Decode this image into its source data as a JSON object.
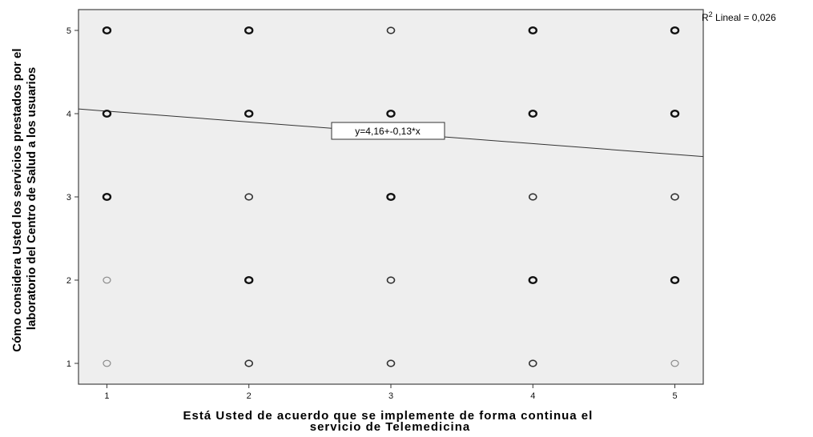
{
  "chart_data": {
    "type": "scatter",
    "xlabel_lines": [
      "Está Usted de acuerdo que se implemente de forma continua el",
      "servicio de Telemedicina"
    ],
    "ylabel_lines": [
      "Cómo considera Usted los servicios prestados por el",
      "laboratorio del Centro de Salud a los usuarios"
    ],
    "x_ticks": [
      1,
      2,
      3,
      4,
      5
    ],
    "y_ticks": [
      1,
      2,
      3,
      4,
      5
    ],
    "xlim": [
      0.8,
      5.2
    ],
    "ylim": [
      0.75,
      5.25
    ],
    "grid": false,
    "points": [
      {
        "x": 1,
        "y": 5,
        "emphasis": "bold"
      },
      {
        "x": 2,
        "y": 5,
        "emphasis": "bold"
      },
      {
        "x": 3,
        "y": 5,
        "emphasis": "normal"
      },
      {
        "x": 4,
        "y": 5,
        "emphasis": "bold"
      },
      {
        "x": 5,
        "y": 5,
        "emphasis": "bold"
      },
      {
        "x": 1,
        "y": 4,
        "emphasis": "bold"
      },
      {
        "x": 2,
        "y": 4,
        "emphasis": "bold"
      },
      {
        "x": 3,
        "y": 4,
        "emphasis": "bold"
      },
      {
        "x": 4,
        "y": 4,
        "emphasis": "bold"
      },
      {
        "x": 5,
        "y": 4,
        "emphasis": "bold"
      },
      {
        "x": 1,
        "y": 3,
        "emphasis": "bold"
      },
      {
        "x": 2,
        "y": 3,
        "emphasis": "normal"
      },
      {
        "x": 3,
        "y": 3,
        "emphasis": "bold"
      },
      {
        "x": 4,
        "y": 3,
        "emphasis": "normal"
      },
      {
        "x": 5,
        "y": 3,
        "emphasis": "normal"
      },
      {
        "x": 1,
        "y": 2,
        "emphasis": "light"
      },
      {
        "x": 2,
        "y": 2,
        "emphasis": "bold"
      },
      {
        "x": 3,
        "y": 2,
        "emphasis": "normal"
      },
      {
        "x": 4,
        "y": 2,
        "emphasis": "bold"
      },
      {
        "x": 5,
        "y": 2,
        "emphasis": "bold"
      },
      {
        "x": 1,
        "y": 1,
        "emphasis": "light"
      },
      {
        "x": 2,
        "y": 1,
        "emphasis": "normal"
      },
      {
        "x": 3,
        "y": 1,
        "emphasis": "normal"
      },
      {
        "x": 4,
        "y": 1,
        "emphasis": "normal"
      },
      {
        "x": 5,
        "y": 1,
        "emphasis": "light"
      }
    ],
    "fit_line": {
      "intercept": 4.16,
      "slope": -0.13,
      "label": "y=4,16+-0,13*x"
    },
    "r2_label_prefix": "R",
    "r2_label_sup": "2",
    "r2_label_rest": " Lineal = 0,026",
    "colors": {
      "plot_background": "#eeeeee",
      "frame": "#444444",
      "points": "#333333",
      "fit_line": "#333333"
    }
  }
}
